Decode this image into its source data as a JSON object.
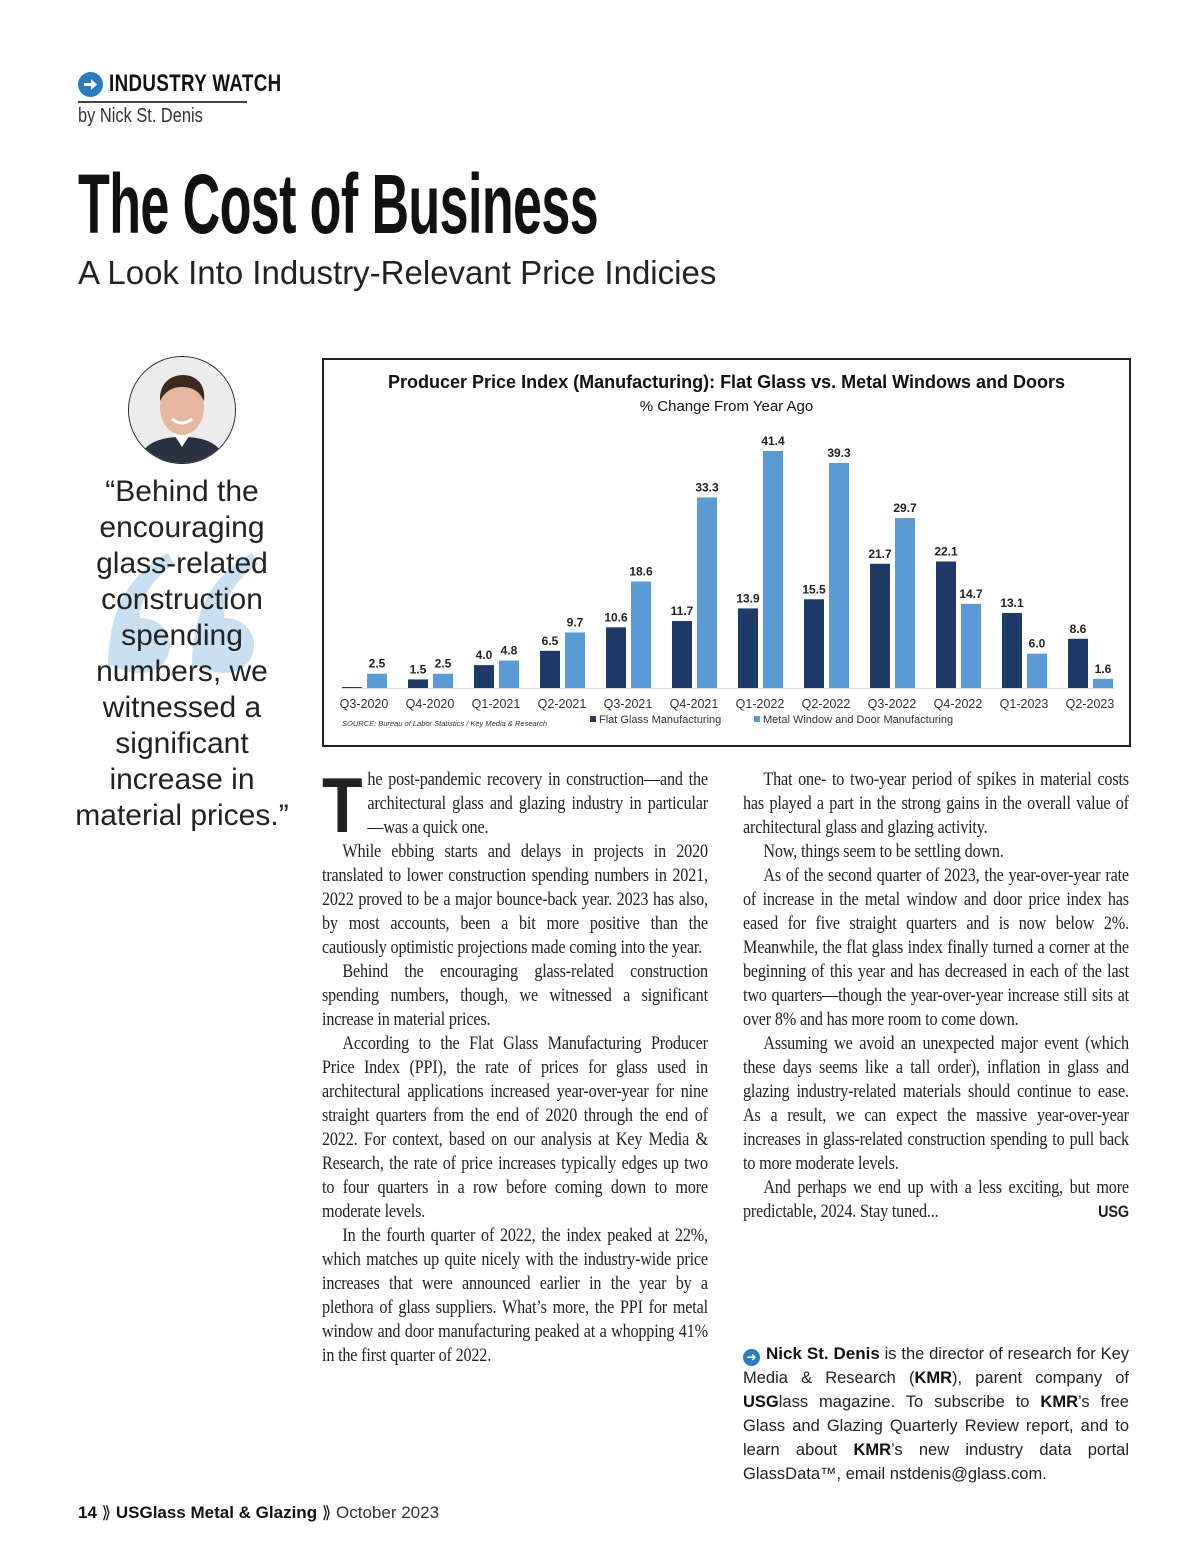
{
  "header": {
    "department": "INDUSTRY WATCH",
    "byline": "by Nick St. Denis",
    "department_icon": "arrow-circle-icon"
  },
  "article": {
    "title": "The Cost of Business",
    "subtitle": "A Look Into Industry-Relevant Price Indicies",
    "pullquote": "“Behind the encouraging glass-related construction spending numbers, we witnessed a significant increase in material prices.”",
    "dropcap": "T",
    "col1": [
      "he post-pandemic recovery in construction—and the architectural glass and glazing industry in particular—was a quick one.",
      "While ebbing starts and delays in projects in 2020 translated to lower construction spending numbers in 2021, 2022 proved to be a major bounce-back year. 2023 has also, by most accounts, been a bit more positive than the cautiously optimistic projections made coming into the year.",
      "Behind the encouraging glass-related construction spending numbers, though, we witnessed a significant increase in material prices.",
      "According to the Flat Glass Manufacturing Producer Price Index (PPI), the rate of prices for glass used in architectural applications increased year-over-year for nine straight quarters from the end of 2020 through the end of 2022. For context, based on our analysis at Key Media & Research, the rate of price increases typically edges up two to four quarters in a row before coming down to more moderate levels.",
      "In the fourth quarter of 2022, the index peaked at 22%, which matches up quite nicely with the industry-wide price increases that were announced earlier in the year by a plethora of glass suppliers. What’s more, the PPI for metal window and door manufacturing peaked at a whopping 41% in the first quarter of 2022."
    ],
    "col2": [
      "That one- to two-year period of spikes in material costs has played a part in the strong gains in the overall value of architectural glass and glazing activity.",
      "Now, things seem to be settling down.",
      "As of the second quarter of 2023, the year-over-year rate of increase in the metal window and door price index has eased for five straight quarters and is now below 2%. Meanwhile, the flat glass index finally turned a corner at the beginning of this year and has decreased in each of the last two quarters—though the year-over-year increase still sits at over 8% and has more room to come down.",
      "Assuming we avoid an unexpected major event (which these days seems like a tall order), inflation in glass and glazing industry-related materials should continue to ease. As a result, we can expect the massive year-over-year increases in glass-related construction spending to pull back to more moderate levels.",
      "And perhaps we end up with a less exciting, but more predictable, 2024. Stay tuned..."
    ],
    "end_mark": "USG",
    "bio": {
      "name": "Nick St. Denis",
      "t1": " is the director of research for Key Media & Research (",
      "kmr": "KMR",
      "t2": "), parent company of ",
      "usg": "USG",
      "t3": "lass magazine. To subscribe to ",
      "t4": "’s free Glass and Glazing Quarterly Review report, and to learn about ",
      "t5": "’s new industry data portal GlassData™, email nstdenis@glass.com."
    }
  },
  "footer": {
    "page": "14",
    "sep": "⟫",
    "publication": "USGlass Metal & Glazing",
    "issue": "October 2023"
  },
  "chart_data": {
    "type": "bar",
    "title": "Producer Price Index (Manufacturing): Flat Glass vs. Metal Windows and Doors",
    "subtitle": "% Change From Year Ago",
    "categories": [
      "Q3-2020",
      "Q4-2020",
      "Q1-2021",
      "Q2-2021",
      "Q3-2021",
      "Q4-2021",
      "Q1-2022",
      "Q2-2022",
      "Q3-2022",
      "Q4-2022",
      "Q1-2023",
      "Q2-2023"
    ],
    "series": [
      {
        "name": "Flat Glass Manufacturing",
        "color": "#1f3a68",
        "values": [
          0,
          1.5,
          4.0,
          6.5,
          10.6,
          11.7,
          13.9,
          15.5,
          21.7,
          22.1,
          13.1,
          8.6
        ],
        "labels": [
          "",
          "1.5",
          "4.0",
          "6.5",
          "10.6",
          "11.7",
          "13.9",
          "15.5",
          "21.7",
          "22.1",
          "13.1",
          "8.6"
        ]
      },
      {
        "name": "Metal Window and Door Manufacturing",
        "color": "#5b9bd5",
        "values": [
          2.5,
          2.5,
          4.8,
          9.7,
          18.6,
          33.3,
          41.4,
          39.3,
          29.7,
          14.7,
          6.0,
          1.6
        ],
        "labels": [
          "2.5",
          "2.5",
          "4.8",
          "9.7",
          "18.6",
          "33.3",
          "41.4",
          "39.3",
          "29.7",
          "14.7",
          "6.0",
          "1.6"
        ]
      }
    ],
    "source": "SOURCE: Bureau of Labor Statistics / Key Media & Research",
    "ylim": [
      0,
      45
    ],
    "legend": "bottom"
  }
}
